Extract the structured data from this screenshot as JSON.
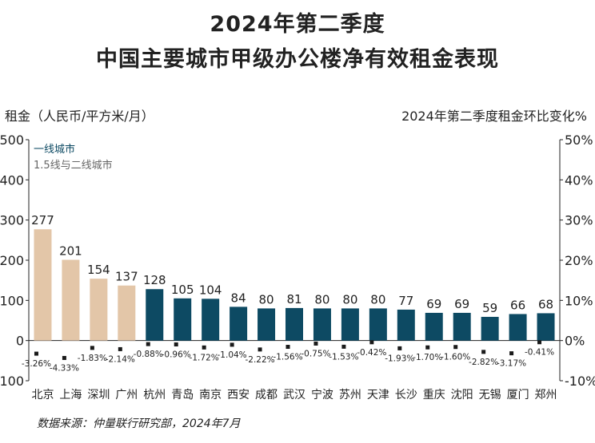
{
  "title_line1": "2024年第二季度",
  "title_line2": "中国主要城市甲级办公楼净有效租金表现",
  "source": "数据来源：仲量联行研究部，2024年7月",
  "colors": {
    "tier1": "#e3c6a8",
    "tier2": "#0d4a63",
    "change_marker": "#1a1a1a",
    "legend_tier1_text": "#0d4a63",
    "legend_tier2_text": "#666666"
  },
  "chart_data": {
    "type": "bar",
    "categories": [
      "北京",
      "上海",
      "深圳",
      "广州",
      "杭州",
      "青岛",
      "南京",
      "西安",
      "成都",
      "武汉",
      "宁波",
      "苏州",
      "天津",
      "长沙",
      "重庆",
      "沈阳",
      "无锡",
      "厦门",
      "郑州"
    ],
    "series": [
      {
        "name": "一线城市",
        "values": [
          277,
          201,
          154,
          137,
          null,
          null,
          null,
          null,
          null,
          null,
          null,
          null,
          null,
          null,
          null,
          null,
          null,
          null,
          null
        ]
      },
      {
        "name": "1.5线与二线城市",
        "values": [
          null,
          null,
          null,
          null,
          128,
          105,
          104,
          84,
          80,
          81,
          80,
          80,
          80,
          77,
          69,
          69,
          59,
          66,
          68
        ]
      }
    ],
    "change_pct": [
      -3.26,
      -4.33,
      -1.83,
      -2.14,
      -0.88,
      -0.96,
      -1.72,
      -1.04,
      -2.22,
      -1.56,
      -0.75,
      -1.53,
      -0.42,
      -1.93,
      -1.7,
      -1.6,
      -2.82,
      -3.17,
      -0.41
    ],
    "value_labels": [
      "277",
      "201",
      "154",
      "137",
      "128",
      "105",
      "104",
      "84",
      "80",
      "81",
      "80",
      "80",
      "80",
      "77",
      "69",
      "69",
      "59",
      "66",
      "68"
    ],
    "change_labels": [
      "-3.26%",
      "-4.33%",
      "-1.83%",
      "-2.14%",
      "-0.88%",
      "-0.96%",
      "-1.72%",
      "-1.04%",
      "-2.22%",
      "-1.56%",
      "-0.75%",
      "-1.53%",
      "-0.42%",
      "-1.93%",
      "-1.70%",
      "-1.60%",
      "-2.82%",
      "-3.17%",
      "-0.41%"
    ],
    "ylabel": "租金（人民币/平方米/月）",
    "y2label": "2024年第二季度租金环比变化%",
    "ylim": [
      -100,
      500
    ],
    "y2lim": [
      -10,
      50
    ],
    "yticks": [
      "-100",
      "0",
      "100",
      "200",
      "300",
      "400",
      "500"
    ],
    "y2ticks": [
      "-10%",
      "0%",
      "10%",
      "20%",
      "30%",
      "40%",
      "50%"
    ],
    "legend": [
      "一线城市",
      "1.5线与二线城市"
    ],
    "legend_position": "top-left",
    "grid": false
  }
}
